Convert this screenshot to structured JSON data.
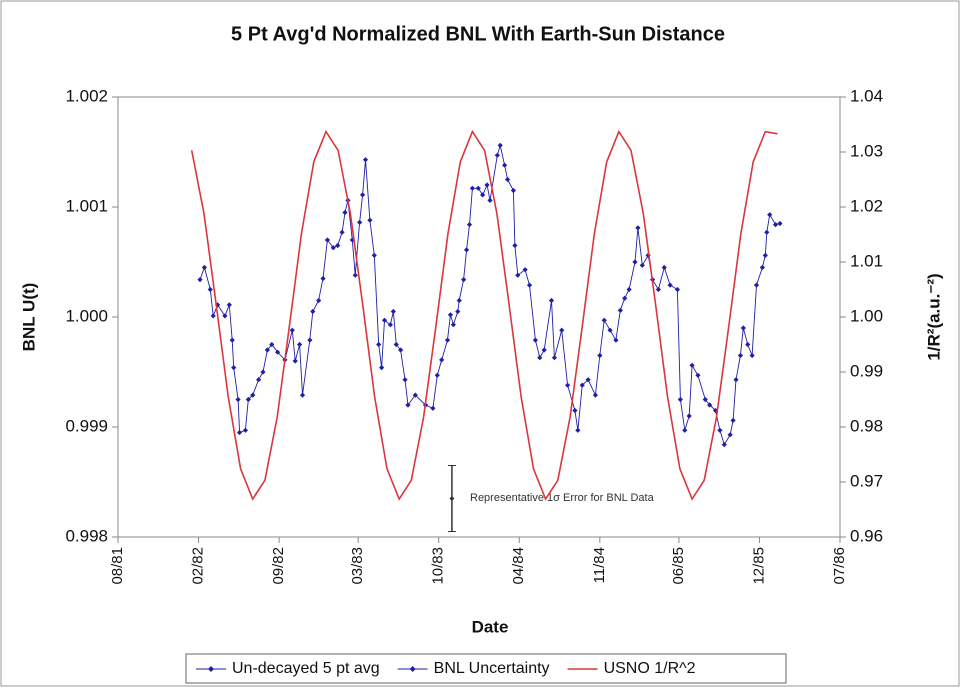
{
  "chart_data": {
    "type": "line",
    "title": "5 Pt Avg'd Normalized BNL With Earth-Sun Distance",
    "x_label": "Date",
    "y_label": "BNL U(t)",
    "y2_label": "1/R²(a.u.⁻²)",
    "annotation": "Representative 1σ Error for BNL Data",
    "xlim": [
      1981.58,
      1986.51
    ],
    "xticks": [
      {
        "value": 1981.58,
        "label": "08/81"
      },
      {
        "value": 1982.13,
        "label": "02/82"
      },
      {
        "value": 1982.68,
        "label": "09/82"
      },
      {
        "value": 1983.22,
        "label": "03/83"
      },
      {
        "value": 1983.77,
        "label": "10/83"
      },
      {
        "value": 1984.32,
        "label": "04/84"
      },
      {
        "value": 1984.87,
        "label": "11/84"
      },
      {
        "value": 1985.41,
        "label": "06/85"
      },
      {
        "value": 1985.96,
        "label": "12/85"
      },
      {
        "value": 1986.51,
        "label": "07/86"
      }
    ],
    "ylim": [
      0.998,
      1.002
    ],
    "yticks": [
      0.998,
      0.999,
      {
        "value": 1,
        "label": "1.000"
      },
      1.001,
      1.002
    ],
    "y2lim": [
      0.96,
      1.04
    ],
    "y2ticks": [
      0.96,
      0.97,
      0.98,
      0.99,
      {
        "value": 1,
        "label": "1.00"
      },
      1.01,
      1.02,
      1.03,
      1.04
    ],
    "grid": false,
    "legend": "bottom",
    "series": [
      {
        "name": "Un-decayed 5 pt avg",
        "color": "#1f1fa8",
        "marker": "diamond",
        "x": [
          1982.14,
          1982.17,
          1982.21,
          1982.23,
          1982.26,
          1982.31,
          1982.34,
          1982.36,
          1982.37,
          1982.4,
          1982.41,
          1982.45,
          1982.47,
          1982.5,
          1982.54,
          1982.57,
          1982.6,
          1982.63,
          1982.67,
          1982.72,
          1982.77,
          1982.79,
          1982.82,
          1982.84,
          1982.89,
          1982.91,
          1982.95,
          1982.98,
          1983.01,
          1983.05,
          1983.08,
          1983.11,
          1983.13,
          1983.15,
          1983.18,
          1983.2,
          1983.23,
          1983.25,
          1983.27,
          1983.3,
          1983.33,
          1983.36,
          1983.38,
          1983.4,
          1983.44,
          1983.46,
          1983.48,
          1983.51,
          1983.54,
          1983.56,
          1983.61,
          1983.68,
          1983.73,
          1983.76,
          1983.79,
          1983.83,
          1983.85,
          1983.87,
          1983.9,
          1983.91,
          1983.94,
          1983.96,
          1983.98,
          1984.0,
          1984.04,
          1984.07,
          1984.1,
          1984.12,
          1984.17,
          1984.19,
          1984.22,
          1984.24,
          1984.28,
          1984.29,
          1984.31,
          1984.36,
          1984.39,
          1984.43,
          1984.46,
          1984.49,
          1984.54,
          1984.56,
          1984.61,
          1984.65,
          1984.7,
          1984.72,
          1984.75,
          1984.79,
          1984.84,
          1984.87,
          1984.9,
          1984.94,
          1984.98,
          1985.01,
          1985.04,
          1985.07,
          1985.11,
          1985.13,
          1985.16,
          1985.2,
          1985.23,
          1985.27,
          1985.31,
          1985.35,
          1985.4,
          1985.42,
          1985.45,
          1985.48,
          1985.5,
          1985.54,
          1985.59,
          1985.62,
          1985.66,
          1985.69,
          1985.72,
          1985.76,
          1985.78,
          1985.8,
          1985.83,
          1985.85,
          1985.88,
          1985.91,
          1985.94,
          1985.98,
          1986.0,
          1986.01,
          1986.03,
          1986.07,
          1986.1
        ],
        "values": [
          1.00034,
          1.00045,
          1.00025,
          1.00001,
          1.00011,
          1.00001,
          1.00011,
          0.99979,
          0.99954,
          0.99925,
          0.99895,
          0.99897,
          0.99925,
          0.99929,
          0.99943,
          0.9995,
          0.9997,
          0.99975,
          0.99968,
          0.99961,
          0.99988,
          0.9996,
          0.99975,
          0.99929,
          0.99979,
          1.00005,
          1.00015,
          1.00035,
          1.0007,
          1.00063,
          1.00065,
          1.00077,
          1.00095,
          1.00106,
          1.0007,
          1.00038,
          1.00086,
          1.00111,
          1.00143,
          1.00088,
          1.00056,
          0.99975,
          0.99954,
          0.99997,
          0.99993,
          1.00005,
          0.99975,
          0.9997,
          0.99943,
          0.9992,
          0.99929,
          0.9992,
          0.99917,
          0.99947,
          0.99961,
          0.99979,
          1.00002,
          0.99993,
          1.00005,
          1.00015,
          1.00034,
          1.00061,
          1.00084,
          1.00117,
          1.00117,
          1.00111,
          1.0012,
          1.00106,
          1.00147,
          1.00156,
          1.00138,
          1.00125,
          1.00115,
          1.00065,
          1.00038,
          1.00043,
          1.00029,
          0.99979,
          0.99963,
          0.9997,
          1.00015,
          0.99963,
          0.99988,
          0.99938,
          0.99915,
          0.99897,
          0.99938,
          0.99943,
          0.99929,
          0.99965,
          0.99997,
          0.99988,
          0.99979,
          1.00006,
          1.00017,
          1.00025,
          1.0005,
          1.00081,
          1.00047,
          1.00056,
          1.00034,
          1.00025,
          1.00045,
          1.00029,
          1.00025,
          0.99925,
          0.99897,
          0.9991,
          0.99956,
          0.99947,
          0.99925,
          0.9992,
          0.99915,
          0.99897,
          0.99884,
          0.99893,
          0.99906,
          0.99943,
          0.99965,
          0.9999,
          0.99975,
          0.99965,
          1.00029,
          1.00045,
          1.00056,
          1.00077,
          1.00093,
          1.00084,
          1.00085
        ]
      },
      {
        "name": "BNL Uncertainty",
        "color": "#1f1fa8",
        "marker": "errorbar",
        "x": [
          1983.86
        ],
        "values": [
          0.99835
        ],
        "errors": [
          0.0003
        ]
      },
      {
        "name": "USNO 1/R^2",
        "color": "#d9363e",
        "marker": "none",
        "axis": "y2",
        "x": [
          1982.083,
          1982.167,
          1982.25,
          1982.333,
          1982.417,
          1982.5,
          1982.583,
          1982.667,
          1982.75,
          1982.833,
          1982.917,
          1983.0,
          1983.083,
          1983.167,
          1983.25,
          1983.333,
          1983.417,
          1983.5,
          1983.583,
          1983.667,
          1983.75,
          1983.833,
          1983.917,
          1984.0,
          1984.083,
          1984.167,
          1984.25,
          1984.333,
          1984.417,
          1984.5,
          1984.583,
          1984.667,
          1984.75,
          1984.833,
          1984.917,
          1985.0,
          1985.083,
          1985.167,
          1985.25,
          1985.333,
          1985.417,
          1985.5,
          1985.583,
          1985.667,
          1985.75,
          1985.833,
          1985.917,
          1986.0,
          1986.083
        ],
        "values": [
          1.0303,
          1.0188,
          1.0024,
          0.9854,
          0.9724,
          0.9669,
          0.9703,
          0.9818,
          0.9982,
          1.0152,
          1.0282,
          1.0337,
          1.0303,
          1.0188,
          1.0024,
          0.9854,
          0.9724,
          0.9669,
          0.9703,
          0.9818,
          0.9982,
          1.0152,
          1.0282,
          1.0337,
          1.0303,
          1.0188,
          1.0024,
          0.9854,
          0.9724,
          0.9669,
          0.9703,
          0.9818,
          0.9982,
          1.0152,
          1.0282,
          1.0337,
          1.0303,
          1.0188,
          1.0024,
          0.9854,
          0.9724,
          0.9669,
          0.9703,
          0.9818,
          0.9982,
          1.0152,
          1.0282,
          1.0337,
          1.0333
        ]
      }
    ]
  }
}
